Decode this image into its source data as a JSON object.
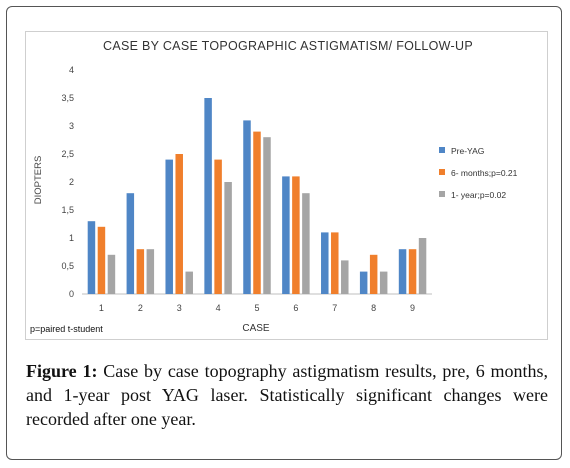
{
  "chart_data": {
    "type": "bar",
    "title": "CASE BY CASE TOPOGRAPHIC ASTIGMATISM/ FOLLOW-UP",
    "xlabel": "CASE",
    "ylabel": "DIOPTERS",
    "categories": [
      "1",
      "2",
      "3",
      "4",
      "5",
      "6",
      "7",
      "8",
      "9"
    ],
    "ylim": [
      0,
      4
    ],
    "yticks": [
      "0",
      "0,5",
      "1",
      "1,5",
      "2",
      "2,5",
      "3",
      "3,5",
      "4"
    ],
    "grid": false,
    "legend_position": "right",
    "series": [
      {
        "name": "Pre-YAG",
        "color": "#4f86c6",
        "values": [
          1.3,
          1.8,
          2.4,
          3.5,
          3.1,
          2.1,
          1.1,
          0.4,
          0.8
        ]
      },
      {
        "name": "6- months;p=0.21",
        "color": "#f07f2c",
        "values": [
          1.2,
          0.8,
          2.5,
          2.4,
          2.9,
          2.1,
          1.1,
          0.7,
          0.8
        ]
      },
      {
        "name": "1- year;p=0.02",
        "color": "#a5a5a5",
        "values": [
          0.7,
          0.8,
          0.4,
          2.0,
          2.8,
          1.8,
          0.6,
          0.4,
          1.0
        ]
      }
    ],
    "annotation": "p=paired t-student"
  },
  "caption": {
    "label": "Figure 1:",
    "text": "Case by case topography astigmatism results, pre, 6 months, and 1-year post YAG laser. Statistically significant changes were recorded after one year."
  }
}
